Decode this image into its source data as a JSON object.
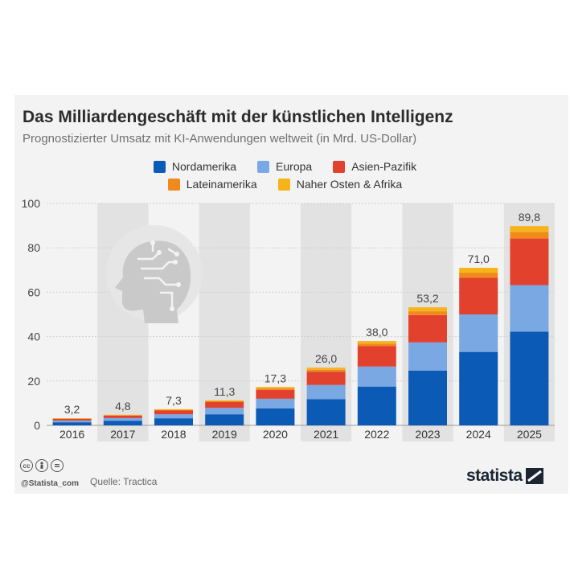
{
  "header": {
    "title": "Das Milliardengeschäft mit der künstlichen Intelligenz",
    "subtitle": "Prognostizierter Umsatz mit KI-Anwendungen weltweit (in Mrd. US-Dollar)"
  },
  "legend": {
    "row1": [
      "Nordamerika",
      "Europa",
      "Asien-Pazifik"
    ],
    "row2": [
      "Lateinamerika",
      "Naher Osten & Afrika"
    ]
  },
  "colors": {
    "Nordamerika": "#0b5bb6",
    "Europa": "#79a8e3",
    "Asien-Pazifik": "#e2412e",
    "Lateinamerika": "#f08a1c",
    "Naher Osten & Afrika": "#f7b31a"
  },
  "footer": {
    "handle": "@Statista_com",
    "source": "Quelle: Tractica",
    "brand": "statista",
    "cc_icons": [
      "cc-icon",
      "by-icon",
      "nd-icon"
    ]
  },
  "chart_data": {
    "type": "bar",
    "stacked": true,
    "categories": [
      "2016",
      "2017",
      "2018",
      "2019",
      "2020",
      "2021",
      "2022",
      "2023",
      "2024",
      "2025"
    ],
    "series": [
      {
        "name": "Nordamerika",
        "values": [
          1.4,
          2.1,
          3.2,
          5.0,
          7.7,
          11.8,
          17.5,
          24.7,
          33.1,
          42.2
        ]
      },
      {
        "name": "Europa",
        "values": [
          0.8,
          1.2,
          1.8,
          2.9,
          4.3,
          6.4,
          9.0,
          12.7,
          16.9,
          21.0
        ]
      },
      {
        "name": "Asien-Pazifik",
        "values": [
          0.7,
          1.1,
          1.7,
          2.6,
          4.0,
          6.0,
          9.2,
          12.3,
          16.5,
          21.0
        ]
      },
      {
        "name": "Lateinamerika",
        "values": [
          0.2,
          0.2,
          0.3,
          0.4,
          0.7,
          0.9,
          1.1,
          1.7,
          2.3,
          2.9
        ]
      },
      {
        "name": "Naher Osten & Afrika",
        "values": [
          0.1,
          0.2,
          0.3,
          0.4,
          0.6,
          0.9,
          1.2,
          1.8,
          2.2,
          2.7
        ]
      }
    ],
    "totals": [
      "3,2",
      "4,8",
      "7,3",
      "11,3",
      "17,3",
      "26,0",
      "38,0",
      "53,2",
      "71,0",
      "89,8"
    ],
    "ylim": [
      0,
      100
    ],
    "yticks": [
      0,
      20,
      40,
      60,
      80,
      100
    ],
    "alternating_band_columns": [
      "2017",
      "2019",
      "2021",
      "2023",
      "2025"
    ],
    "decoration": "head-circuit-icon"
  }
}
